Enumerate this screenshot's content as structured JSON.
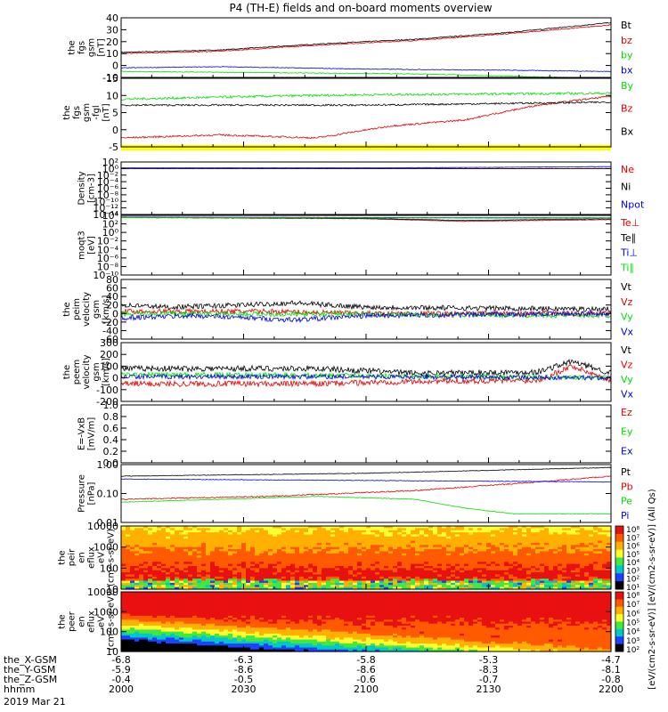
{
  "title": "P4 (TH-E) fields and on-board moments overview",
  "footer": {
    "row_labels": [
      "the_X-GSM",
      "the_Y-GSM",
      "the_Z-GSM",
      "hhmm",
      "2019 Mar 21"
    ],
    "columns": [
      [
        "-6.8",
        "-5.9",
        "-0.4",
        "2000"
      ],
      [
        "-6.3",
        "-8.6",
        "-0.5",
        "2030"
      ],
      [
        "-5.8",
        "-8.6",
        "-0.6",
        "2100"
      ],
      [
        "-5.3",
        "-8.3",
        "-0.7",
        "2130"
      ],
      [
        "-4.7",
        "-8.1",
        "-0.8",
        "2200"
      ]
    ]
  },
  "colorbar": {
    "label": "[eV/(cm2-s-sr-eV)] [eV/(cm2-s-sr-eV)] (All Qs)"
  },
  "colors": {
    "black": "#000000",
    "red": "#e00000",
    "green": "#00e000",
    "blue": "#0000e0",
    "yellow": "#ffff00"
  },
  "chart_data": [
    {
      "type": "line",
      "ylabel": "the fgs gsm [nT]",
      "yticks": [
        "40",
        "30",
        "20",
        "10",
        "0",
        "-10"
      ],
      "ylim": [
        -10,
        40
      ],
      "series": [
        {
          "name": "Bt",
          "color": "black",
          "points": [
            [
              0,
              11
            ],
            [
              0.2,
              13
            ],
            [
              0.4,
              18
            ],
            [
              0.6,
              22
            ],
            [
              0.8,
              28
            ],
            [
              1,
              36
            ]
          ],
          "noise": 0.4
        },
        {
          "name": "bz",
          "color": "red",
          "points": [
            [
              0,
              10
            ],
            [
              0.2,
              12
            ],
            [
              0.4,
              17
            ],
            [
              0.6,
              21
            ],
            [
              0.8,
              27
            ],
            [
              1,
              34
            ]
          ],
          "noise": 0.4
        },
        {
          "name": "by",
          "color": "green",
          "points": [
            [
              0,
              -5
            ],
            [
              0.3,
              -6
            ],
            [
              0.6,
              -7
            ],
            [
              0.8,
              -9
            ],
            [
              1,
              -11
            ]
          ],
          "noise": 0.3
        },
        {
          "name": "bx",
          "color": "blue",
          "points": [
            [
              0,
              -2
            ],
            [
              0.2,
              -1
            ],
            [
              0.5,
              -3
            ],
            [
              0.8,
              -4
            ],
            [
              1,
              -5
            ]
          ],
          "noise": 0.3
        }
      ]
    },
    {
      "type": "line",
      "ylabel": "the fgs gsm -fgl [nT]",
      "yticks": [
        "15",
        "10",
        "5",
        "0",
        "-5"
      ],
      "ylim": [
        -8,
        15
      ],
      "series": [
        {
          "name": "By",
          "color": "green",
          "points": [
            [
              0,
              8
            ],
            [
              0.3,
              9
            ],
            [
              0.5,
              9.5
            ],
            [
              1,
              10
            ]
          ],
          "noise": 0.4
        },
        {
          "name": "Bz",
          "color": "red",
          "points": [
            [
              0,
              -5
            ],
            [
              0.2,
              -4
            ],
            [
              0.4,
              -5
            ],
            [
              0.55,
              -1
            ],
            [
              0.7,
              1
            ],
            [
              0.85,
              6
            ],
            [
              1,
              9
            ]
          ],
          "noise": 0.3
        },
        {
          "name": "Bx",
          "color": "black",
          "points": [
            [
              0,
              6
            ],
            [
              0.5,
              6
            ],
            [
              1,
              7
            ]
          ],
          "noise": 0.3
        }
      ]
    },
    {
      "type": "line",
      "ylabel": "Density [cm-3]",
      "yticks": [
        "10²",
        "10⁰",
        "10⁻²",
        "10⁻⁴",
        "10⁻⁶",
        "10⁻⁸",
        "10⁻¹⁰",
        "10⁻¹²",
        "10⁻¹⁴"
      ],
      "ylim": [
        -14,
        2
      ],
      "log": true,
      "series": [
        {
          "name": "Ne",
          "color": "red",
          "points": [
            [
              0,
              0
            ],
            [
              1,
              0
            ]
          ],
          "noise": 0.05
        },
        {
          "name": "Ni",
          "color": "black",
          "points": [
            [
              0,
              0
            ],
            [
              1,
              0
            ]
          ],
          "noise": 0.05
        },
        {
          "name": "Npot",
          "color": "blue",
          "points": [
            [
              0,
              0.2
            ],
            [
              0.5,
              0.2
            ],
            [
              0.8,
              0.4
            ],
            [
              1,
              0.6
            ]
          ],
          "noise": 0.03
        }
      ]
    },
    {
      "type": "line",
      "ylabel": "moqt3 [eV]",
      "yticks": [
        "10⁴",
        "10²",
        "10⁰",
        "10⁻²",
        "10⁻⁴",
        "10⁻⁶",
        "10⁻⁸",
        "10⁻¹⁰"
      ],
      "ylim": [
        -10,
        4
      ],
      "log": true,
      "series": [
        {
          "name": "Te⊥",
          "color": "red",
          "points": [
            [
              0,
              3.5
            ],
            [
              0.5,
              3.2
            ],
            [
              0.7,
              2.6
            ],
            [
              1,
              3.0
            ]
          ],
          "noise": 0.05
        },
        {
          "name": "Te∥",
          "color": "black",
          "points": [
            [
              0,
              3.6
            ],
            [
              0.5,
              3.3
            ],
            [
              0.7,
              2.8
            ],
            [
              1,
              3.2
            ]
          ],
          "noise": 0.05
        },
        {
          "name": "Ti⊥",
          "color": "blue",
          "points": [
            [
              0,
              3.6
            ],
            [
              1,
              3.4
            ]
          ],
          "noise": 0.02
        },
        {
          "name": "Ti∥",
          "color": "green",
          "points": [
            [
              0,
              3.5
            ],
            [
              1,
              3.3
            ]
          ],
          "noise": 0.02
        }
      ]
    },
    {
      "type": "line",
      "ylabel": "the peim velocity gsm [km/s]",
      "yticks": [
        "80",
        "60",
        "40",
        "20",
        "0",
        "-20",
        "-40",
        "-60"
      ],
      "ylim": [
        -60,
        80
      ],
      "series": [
        {
          "name": "Vt",
          "color": "black",
          "points": [
            [
              0,
              20
            ],
            [
              0.1,
              15
            ],
            [
              0.25,
              20
            ],
            [
              0.35,
              25
            ],
            [
              0.5,
              15
            ],
            [
              1,
              10
            ]
          ],
          "noise": 6
        },
        {
          "name": "Vz",
          "color": "red",
          "points": [
            [
              0,
              5
            ],
            [
              0.3,
              5
            ],
            [
              0.5,
              0
            ],
            [
              1,
              0
            ]
          ],
          "noise": 6
        },
        {
          "name": "Vy",
          "color": "green",
          "points": [
            [
              0,
              0
            ],
            [
              0.5,
              -2
            ],
            [
              1,
              -5
            ]
          ],
          "noise": 6
        },
        {
          "name": "Vx",
          "color": "blue",
          "points": [
            [
              0,
              -10
            ],
            [
              0.15,
              -5
            ],
            [
              0.25,
              -10
            ],
            [
              0.35,
              -15
            ],
            [
              0.5,
              -5
            ],
            [
              1,
              0
            ]
          ],
          "noise": 6
        }
      ]
    },
    {
      "type": "line",
      "ylabel": "the peem velocity gsm [km/s]",
      "yticks": [
        "300",
        "200",
        "100",
        "0",
        "-100",
        "-200"
      ],
      "ylim": [
        -200,
        300
      ],
      "series": [
        {
          "name": "Vt",
          "color": "black",
          "points": [
            [
              0,
              80
            ],
            [
              0.4,
              80
            ],
            [
              0.6,
              40
            ],
            [
              0.85,
              50
            ],
            [
              0.92,
              140
            ],
            [
              1,
              40
            ]
          ],
          "noise": 25
        },
        {
          "name": "Vz",
          "color": "red",
          "points": [
            [
              0,
              -50
            ],
            [
              0.4,
              -50
            ],
            [
              0.6,
              -30
            ],
            [
              0.85,
              -20
            ],
            [
              0.92,
              100
            ],
            [
              1,
              -20
            ]
          ],
          "noise": 25
        },
        {
          "name": "Vy",
          "color": "green",
          "points": [
            [
              0,
              30
            ],
            [
              0.5,
              20
            ],
            [
              1,
              0
            ]
          ],
          "noise": 20
        },
        {
          "name": "Vx",
          "color": "blue",
          "points": [
            [
              0,
              10
            ],
            [
              0.5,
              10
            ],
            [
              1,
              0
            ]
          ],
          "noise": 20
        }
      ]
    },
    {
      "type": "line",
      "ylabel": "E=-VxB [mV/m]",
      "yticks": [
        "1.0",
        "0.8",
        "0.6",
        "0.4",
        "0.2",
        "0.0"
      ],
      "ylim": [
        0,
        1
      ],
      "series": [
        {
          "name": "Ez",
          "color": "red",
          "points": [],
          "noise": 0
        },
        {
          "name": "Ey",
          "color": "green",
          "points": [],
          "noise": 0
        },
        {
          "name": "Ex",
          "color": "blue",
          "points": [],
          "noise": 0
        }
      ]
    },
    {
      "type": "line",
      "ylabel": "Pressure [nPa]",
      "yticks": [
        "1.00",
        "0.10",
        "0.01"
      ],
      "ylim": [
        -2,
        0
      ],
      "log": true,
      "series": [
        {
          "name": "Pt",
          "color": "black",
          "points": [
            [
              0,
              -0.4
            ],
            [
              0.5,
              -0.3
            ],
            [
              1,
              -0.1
            ]
          ],
          "noise": 0.01
        },
        {
          "name": "Pb",
          "color": "red",
          "points": [
            [
              0,
              -1.2
            ],
            [
              0.3,
              -1.1
            ],
            [
              0.6,
              -0.9
            ],
            [
              0.85,
              -0.6
            ],
            [
              1,
              -0.4
            ]
          ],
          "noise": 0.02
        },
        {
          "name": "Pe",
          "color": "green",
          "points": [
            [
              0,
              -1.3
            ],
            [
              0.4,
              -1.1
            ],
            [
              0.6,
              -1.2
            ],
            [
              0.7,
              -1.5
            ],
            [
              0.8,
              -1.7
            ],
            [
              1,
              -1.7
            ]
          ],
          "noise": 0.01
        },
        {
          "name": "Pi",
          "color": "blue",
          "points": [
            [
              0,
              -0.5
            ],
            [
              0.5,
              -0.55
            ],
            [
              1,
              -0.6
            ]
          ],
          "noise": 0.01
        }
      ]
    },
    {
      "type": "heatmap",
      "ylabel": "the peir en eflux eV (cm²-s-sr-eV)",
      "yticks": [
        "10000",
        "1000",
        "100",
        "10"
      ],
      "ylim": [
        1,
        4.3
      ],
      "log": true,
      "colorbar_ticks": [
        "10⁸",
        "10⁷",
        "10⁶",
        "10⁵",
        "10⁴",
        "10³",
        "10²",
        "10¹"
      ]
    },
    {
      "type": "heatmap",
      "ylabel": "the peer en eflux eV (cm²-s-sr-eV)",
      "yticks": [
        "10000",
        "1000",
        "100",
        "10"
      ],
      "ylim": [
        1,
        4.3
      ],
      "log": true,
      "colorbar_ticks": [
        "10⁸",
        "10⁷",
        "10⁶",
        "10⁵",
        "10⁴",
        "10³",
        "10²"
      ]
    }
  ]
}
